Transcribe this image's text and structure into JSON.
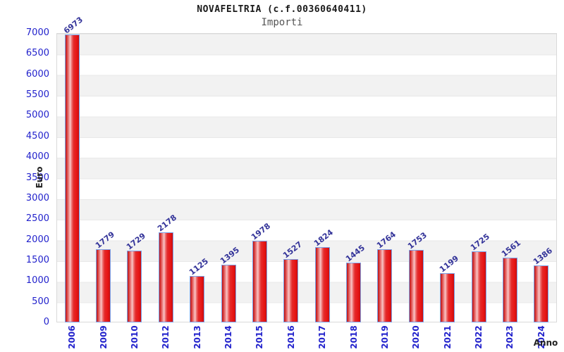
{
  "header": {
    "title": "NOVAFELTRIA (c.f.00360640411)",
    "subtitle": "Importi"
  },
  "chart_data": {
    "type": "bar",
    "title": "NOVAFELTRIA (c.f.00360640411)",
    "subtitle": "Importi",
    "xlabel": "Anno",
    "ylabel": "Euro",
    "categories": [
      "2006",
      "2009",
      "2010",
      "2012",
      "2013",
      "2014",
      "2015",
      "2016",
      "2017",
      "2018",
      "2019",
      "2020",
      "2021",
      "2022",
      "2023",
      "2024"
    ],
    "values": [
      6973,
      1779,
      1729,
      2178,
      1125,
      1395,
      1978,
      1527,
      1824,
      1445,
      1764,
      1753,
      1199,
      1725,
      1561,
      1386
    ],
    "ylim": [
      0,
      7000
    ],
    "ytick_step": 500,
    "grid": "alternating-horizontal-bands-500",
    "legend": "none",
    "colors": {
      "bar_fill_main": "#e01818",
      "bar_border": "#7ba2e8",
      "value_label": "#333399",
      "tick_label": "#2222cc",
      "axis_title": "#222222",
      "band_gray": "#f2f2f2",
      "band_white": "#ffffff"
    }
  }
}
